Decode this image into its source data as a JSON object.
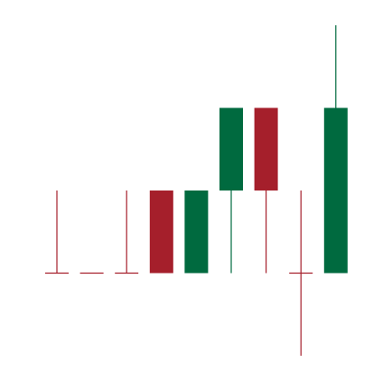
{
  "chart_data": {
    "type": "candlestick",
    "title": "",
    "xlabel": "",
    "ylabel": "",
    "ylim": [
      0,
      4
    ],
    "grid": false,
    "legend": "none",
    "colors": {
      "up": "#006a3f",
      "down": "#a51f2b"
    },
    "series": [
      {
        "values": [
          {
            "open": 1,
            "high": 2,
            "low": 1,
            "close": 1
          },
          {
            "open": 1,
            "high": 1,
            "low": 1,
            "close": 1
          },
          {
            "open": 1,
            "high": 2,
            "low": 1,
            "close": 1
          },
          {
            "open": 2,
            "high": 2,
            "low": 1,
            "close": 1
          },
          {
            "open": 1,
            "high": 2,
            "low": 1,
            "close": 2
          },
          {
            "open": 2,
            "high": 3,
            "low": 1,
            "close": 3
          },
          {
            "open": 3,
            "high": 3,
            "low": 1,
            "close": 2
          },
          {
            "open": 1,
            "high": 2,
            "low": 0,
            "close": 1
          },
          {
            "open": 1,
            "high": 4,
            "low": 1,
            "close": 3
          }
        ]
      }
    ]
  }
}
